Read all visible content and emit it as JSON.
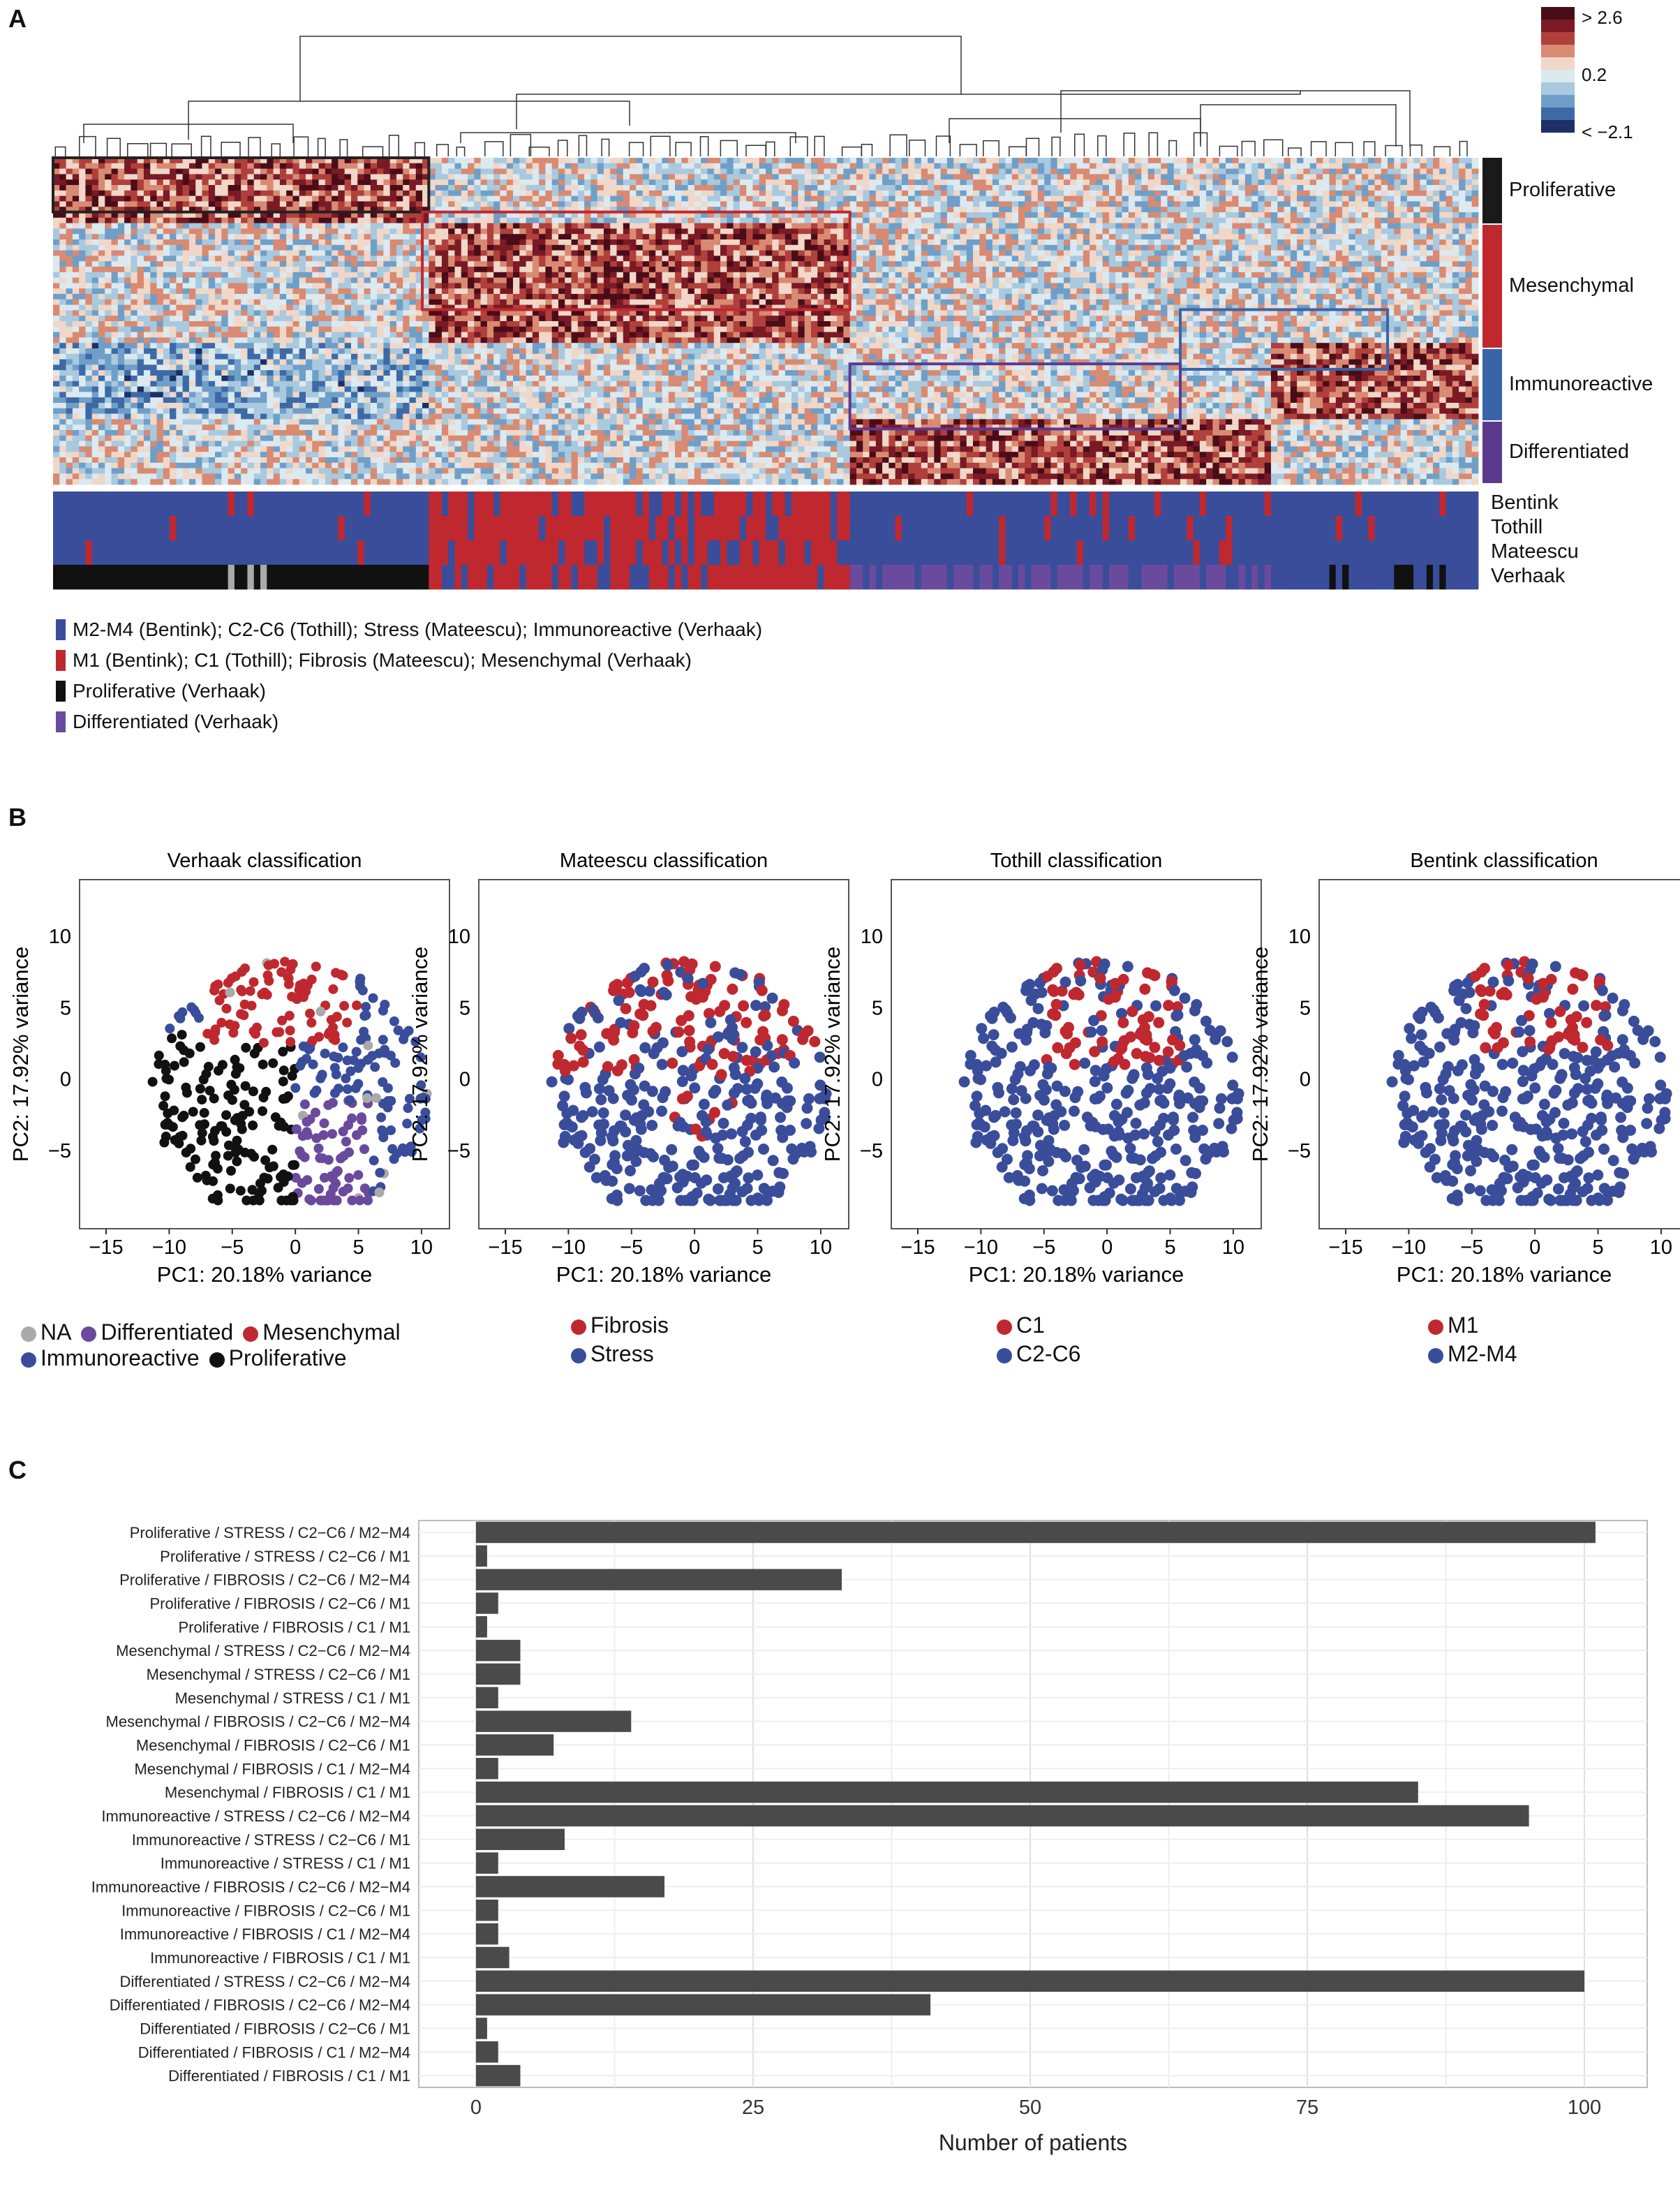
{
  "panels": {
    "a": "A",
    "b": "B",
    "c": "C"
  },
  "colors": {
    "blue": "#3a4d9a",
    "red": "#c0282f",
    "black": "#111111",
    "purple": "#6a4a9c",
    "grey": "#aaaaaa",
    "bar": "#4a4a4a",
    "gridbg": "#ffffff"
  },
  "heatmap": {
    "colorbar_labels": [
      "> 2.6",
      "0.2",
      "< −2.1"
    ],
    "colorbar_colors": [
      "#4a0d18",
      "#7a1a25",
      "#b0403c",
      "#d98a72",
      "#f0d7c8",
      "#dce9ef",
      "#a8c9de",
      "#6f9fc8",
      "#3d6aa6",
      "#1d2f66"
    ],
    "row_groups": [
      {
        "label": "Proliferative",
        "color": "#1a1a1a"
      },
      {
        "label": "Mesenchymal",
        "color": "#c0282f"
      },
      {
        "label": "Immunoreactive",
        "color": "#3a64a8"
      },
      {
        "label": "Differentiated",
        "color": "#5b3a8e"
      }
    ],
    "annotation_rows": [
      "Bentink",
      "Tothill",
      "Mateescu",
      "Verhaak"
    ],
    "legend": [
      {
        "label": "M2-M4 (Bentink); C2-C6 (Tothill); Stress (Mateescu); Immunoreactive (Verhaak)",
        "color": "#3a4d9a"
      },
      {
        "label": "M1 (Bentink); C1 (Tothill); Fibrosis (Mateescu); Mesenchymal (Verhaak)",
        "color": "#c0282f"
      },
      {
        "label": "Proliferative (Verhaak)",
        "color": "#111111"
      },
      {
        "label": "Differentiated (Verhaak)",
        "color": "#6a4a9c"
      }
    ]
  },
  "pca": {
    "xlabel": "PC1: 20.18% variance",
    "ylabel": "PC2: 17.92% variance",
    "xticks": [
      "−15",
      "−10",
      "−5",
      "0",
      "5",
      "10"
    ],
    "yticks": [
      "10",
      "5",
      "0",
      "−5"
    ],
    "plots": [
      {
        "title": "Verhaak classification",
        "legend": [
          {
            "label": "NA",
            "color": "#aaaaaa"
          },
          {
            "label": "Differentiated",
            "color": "#6a4a9c"
          },
          {
            "label": "Mesenchymal",
            "color": "#c0282f"
          },
          {
            "label": "Immunoreactive",
            "color": "#3a4d9a"
          },
          {
            "label": "Proliferative",
            "color": "#111111"
          }
        ]
      },
      {
        "title": "Mateescu classification",
        "legend": [
          {
            "label": "Fibrosis",
            "color": "#c0282f"
          },
          {
            "label": "Stress",
            "color": "#3a4d9a"
          }
        ]
      },
      {
        "title": "Tothill classification",
        "legend": [
          {
            "label": "C1",
            "color": "#c0282f"
          },
          {
            "label": "C2-C6",
            "color": "#3a4d9a"
          }
        ]
      },
      {
        "title": "Bentink classification",
        "legend": [
          {
            "label": "M1",
            "color": "#c0282f"
          },
          {
            "label": "M2-M4",
            "color": "#3a4d9a"
          }
        ]
      }
    ]
  },
  "chart_data": {
    "type": "bar",
    "orientation": "horizontal",
    "xlabel": "Number of patients",
    "xlim": [
      0,
      105
    ],
    "xticks": [
      0,
      25,
      50,
      75,
      100
    ],
    "categories": [
      "Proliferative / STRESS / C2−C6 /  M2−M4",
      "Proliferative / STRESS / C2−C6 /  M1",
      "Proliferative / FIBROSIS / C2−C6 /  M2−M4",
      "Proliferative / FIBROSIS / C2−C6 /  M1",
      "Proliferative / FIBROSIS / C1 /  M1",
      "Mesenchymal / STRESS / C2−C6 /  M2−M4",
      "Mesenchymal / STRESS / C2−C6 /  M1",
      "Mesenchymal / STRESS / C1 /  M1",
      "Mesenchymal / FIBROSIS / C2−C6 /  M2−M4",
      "Mesenchymal / FIBROSIS / C2−C6 /  M1",
      "Mesenchymal / FIBROSIS / C1 /  M2−M4",
      "Mesenchymal / FIBROSIS / C1 /  M1",
      "Immunoreactive / STRESS / C2−C6 /  M2−M4",
      "Immunoreactive / STRESS / C2−C6 /  M1",
      "Immunoreactive / STRESS / C1 /  M1",
      "Immunoreactive / FIBROSIS / C2−C6 /  M2−M4",
      "Immunoreactive / FIBROSIS / C2−C6 /  M1",
      "Immunoreactive / FIBROSIS / C1 /  M2−M4",
      "Immunoreactive / FIBROSIS / C1 /  M1",
      "Differentiated / STRESS / C2−C6 /  M2−M4",
      "Differentiated / FIBROSIS / C2−C6 /  M2−M4",
      "Differentiated / FIBROSIS / C2−C6 /  M1",
      "Differentiated / FIBROSIS / C1 /  M2−M4",
      "Differentiated / FIBROSIS / C1 /  M1"
    ],
    "values": [
      101,
      1,
      33,
      2,
      1,
      4,
      4,
      2,
      14,
      7,
      2,
      85,
      95,
      8,
      2,
      17,
      2,
      2,
      3,
      100,
      41,
      1,
      2,
      4
    ]
  }
}
